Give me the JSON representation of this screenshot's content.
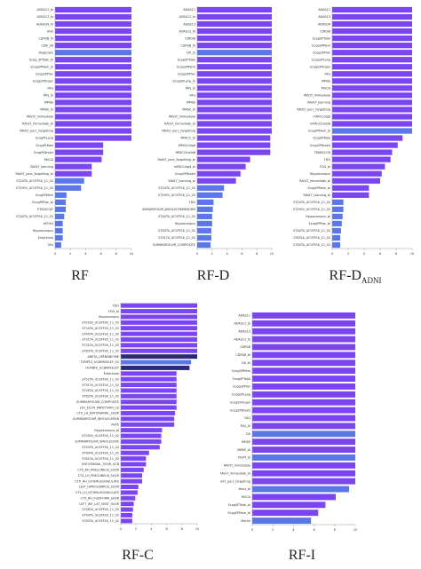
{
  "captions": [
    "RF",
    "RF-D",
    "RF-D",
    "RF-C",
    "RF-I"
  ],
  "caption_subscripts": [
    "",
    "",
    "ADNI",
    "",
    ""
  ],
  "colors": {
    "purple": "#7b45f2",
    "blue": "#5b76e6",
    "dark": "#2b2a7a",
    "axis": "#999999"
  },
  "chart_data": [
    {
      "type": "bar",
      "orientation": "horizontal",
      "xlim": [
        0,
        10
      ],
      "xticks": [
        0,
        2,
        4,
        6,
        8,
        10
      ],
      "categories": [
        "ADAS11_bl",
        "ADAS13_bl",
        "ADASQ4_bl",
        "AGE",
        "CDRSB_bl",
        "CDR_SB",
        "Diagnosis",
        "Ecog_SPTotal_bl",
        "EcogSPMem_bl",
        "EcogSPPlan",
        "EcogSPOrgan",
        "FAQ",
        "FAQ_bl",
        "MMSE",
        "MMSE_bl",
        "RAVLT_immediate",
        "RAVLT_immediate_bl",
        "RAVLT_perc_forgetting",
        "EcogPtLang",
        "EcogPtTotal",
        "EcogPtDivatt",
        "MOCA",
        "RAVLT_learning",
        "RAVLT_perc_forgetting_bl",
        "ST24TA_UCSFFSX_11_02",
        "ST29SV_UCSFFSX_11_02",
        "EcogPtMem",
        "EcogPtPlan_bl",
        "PTEDUCAT",
        "ST40TA_UCSFFSX_11_02",
        "APOE4",
        "Hippocampus",
        "Entorhinal",
        "TAU"
      ],
      "values": [
        10,
        10,
        10,
        10,
        10,
        10,
        10,
        10,
        10,
        10,
        10,
        10,
        10,
        10,
        10,
        10,
        10,
        10,
        10,
        6.3,
        6.3,
        6.1,
        4.8,
        4.8,
        3.8,
        3.4,
        1.5,
        1.4,
        1.4,
        1.2,
        1.0,
        1.0,
        1.0,
        0.8
      ],
      "colors": [
        "#7b45f2",
        "#7b45f2",
        "#7b45f2",
        "#7b45f2",
        "#7b45f2",
        "#7b45f2",
        "#5b76e6",
        "#7b45f2",
        "#7b45f2",
        "#7b45f2",
        "#7b45f2",
        "#7b45f2",
        "#7b45f2",
        "#7b45f2",
        "#7b45f2",
        "#7b45f2",
        "#7b45f2",
        "#7b45f2",
        "#7b45f2",
        "#7b45f2",
        "#7b45f2",
        "#7b45f2",
        "#7b45f2",
        "#7b45f2",
        "#5b76e6",
        "#5b76e6",
        "#5b76e6",
        "#5b76e6",
        "#5b76e6",
        "#5b76e6",
        "#5b76e6",
        "#5b76e6",
        "#5b76e6",
        "#5b76e6"
      ]
    },
    {
      "type": "bar",
      "orientation": "horizontal",
      "xlim": [
        0,
        10
      ],
      "xticks": [
        0,
        2,
        4,
        6,
        8,
        10
      ],
      "categories": [
        "ADAS11",
        "ADAS11_bl",
        "ADAS13",
        "ADAS13_bl",
        "CDRSB",
        "CDRSB_bl",
        "DX_bl",
        "EcogSPTotal",
        "EcogSPMem",
        "EcogSPPlan",
        "EcogSPLang_bl",
        "FAQ_bl",
        "FAQ",
        "MMSE",
        "MMSE_bl",
        "RAVLT_immediate",
        "RAVLT_immediate_bl",
        "RAVLT_perc_forgetting",
        "MPACC_bl",
        "MPACCdigit",
        "MPACCtrailsB",
        "RAVLT_perc_forgetting_bl",
        "mPACCdigit_bl",
        "EcogSPDivatt",
        "RAVLT_learning_bl",
        "ST24TA_UCSFFSX_11_02",
        "ST29SV_UCSFFSX_11_02",
        "FDG",
        "SUMMARYSUVR_WHOLECEREBNORM",
        "ST40TA_UCSFFSX_11_02",
        "Hippocampus",
        "ST83TA_UCSFFSX_11_02",
        "ST91TA_UCSFFSX_11_02",
        "SUMMARYSUVR_COMPOSITE"
      ],
      "values": [
        10,
        10,
        10,
        10,
        10,
        10,
        10,
        10,
        10,
        10,
        10,
        10,
        10,
        10,
        10,
        10,
        10,
        10,
        9.8,
        9.8,
        9.8,
        7.1,
        6.5,
        5.8,
        5.2,
        3.6,
        3.4,
        2.2,
        2.1,
        2.0,
        2.0,
        1.9,
        1.9,
        1.8
      ],
      "colors": [
        "#7b45f2",
        "#7b45f2",
        "#7b45f2",
        "#7b45f2",
        "#7b45f2",
        "#7b45f2",
        "#5b76e6",
        "#7b45f2",
        "#7b45f2",
        "#7b45f2",
        "#7b45f2",
        "#7b45f2",
        "#7b45f2",
        "#7b45f2",
        "#7b45f2",
        "#7b45f2",
        "#7b45f2",
        "#7b45f2",
        "#7b45f2",
        "#7b45f2",
        "#7b45f2",
        "#7b45f2",
        "#7b45f2",
        "#7b45f2",
        "#7b45f2",
        "#5b76e6",
        "#5b76e6",
        "#5b76e6",
        "#5b76e6",
        "#5b76e6",
        "#5b76e6",
        "#5b76e6",
        "#5b76e6",
        "#5b76e6"
      ]
    },
    {
      "type": "bar",
      "orientation": "horizontal",
      "xlim": [
        0,
        10
      ],
      "xticks": [
        0,
        2,
        4,
        6,
        8,
        10
      ],
      "categories": [
        "ADAS11",
        "ADAS13",
        "ADASQ4",
        "CDRSB",
        "EcogSPTotal",
        "EcogSPMem",
        "EcogSPPlan",
        "EcogSPLang",
        "EcogSPOrgan",
        "FAQ",
        "MMSE",
        "MOCA",
        "RAVLT_immediate",
        "RAVLT_learning",
        "RAVLT_perc_forgetting",
        "mPACCdigit",
        "mPACCtrailsB",
        "EcogPtMem_bl",
        "EcogPtTotal",
        "EcogSPDivatt",
        "TRABSCOR",
        "FDG",
        "FDG_bl",
        "Hippocampus",
        "RAVLT_immediate_bl",
        "EcogSPMem_bl",
        "RAVLT_learning_bl",
        "ST24TA_UCSFFSX_11_02",
        "ST29SV_UCSFFSX_11_02",
        "Hippocampus_bl",
        "EcogSPPlan_bl",
        "ST40TA_UCSFFSX_11_02",
        "STATSA_UCSFFSX_11_02",
        "ST83TA_UCSFFSX_11_02"
      ],
      "values": [
        10,
        10,
        10,
        10,
        10,
        10,
        10,
        10,
        10,
        10,
        10,
        10,
        10,
        10,
        10,
        10,
        10,
        10,
        8.8,
        8.2,
        7.5,
        7.3,
        6.6,
        6.2,
        6.0,
        4.6,
        4.6,
        1.4,
        1.4,
        1.3,
        1.2,
        1.1,
        1.0,
        1.0
      ],
      "colors": [
        "#7b45f2",
        "#7b45f2",
        "#7b45f2",
        "#7b45f2",
        "#7b45f2",
        "#7b45f2",
        "#7b45f2",
        "#7b45f2",
        "#7b45f2",
        "#7b45f2",
        "#7b45f2",
        "#7b45f2",
        "#7b45f2",
        "#7b45f2",
        "#7b45f2",
        "#7b45f2",
        "#7b45f2",
        "#5b76e6",
        "#7b45f2",
        "#7b45f2",
        "#7b45f2",
        "#7b45f2",
        "#7b45f2",
        "#7b45f2",
        "#7b45f2",
        "#7b45f2",
        "#7b45f2",
        "#5b76e6",
        "#5b76e6",
        "#5b76e6",
        "#5b76e6",
        "#5b76e6",
        "#5b76e6",
        "#5b76e6"
      ]
    },
    {
      "type": "bar",
      "orientation": "horizontal",
      "xlim": [
        0,
        10
      ],
      "xticks": [
        0,
        2,
        4,
        6,
        8,
        10
      ],
      "categories": [
        "FDG",
        "FDG_bl",
        "Hippocampus",
        "ST29SV_UCSFFSX_11_02",
        "ST24TA_UCSFFSX_11_02",
        "ST40TA_UCSFFSX_11_02",
        "ST31TA_UCSFFSX_11_02",
        "ST32TA_UCSFFSX_11_02",
        "ST83TA_UCSFFSX_11_02",
        "ABETA_UPENNBIOMK",
        "TEMPTZ_UCBERKELEY_02",
        "HOXBFE_UCBERKELEY",
        "Entorhinal",
        "ST52TA_UCSFFSX_11_02",
        "ST91TA_UCSFFSX_11_02",
        "ST26TA_UCSFFSX_11_02",
        "ST62TA_UCSFFSX_11_02",
        "SUMMARYSUVR_COMPOSITE",
        "HCI_ECO4_RAPETVHRI_CE",
        "CTX_LH_ENTORHINAL_SUVR",
        "SUMMARYSUVR_WHOLECEREB",
        "AV45",
        "Hippocampus_bl",
        "ST29SV_UCSFFSX_11_02",
        "SUMMARYSUVR_WHOLECERE",
        "ST44TA_UCSFFSX_11_02",
        "ST60TA_UCSFFSX_11_02",
        "ST81TA_UCSFFSX_11_02",
        "ENTORHINAL_SUVR_UCB",
        "CTX_RH_PRECUNEUS_SUVR",
        "CTX_LH_PRECUNEUS_SUVR",
        "CTX_RH_ISTHMUSCINGULATE",
        "LEFT_HIPPOCAMPUS_SUVR",
        "CTX_LH_ISTHMUSCINGULATE",
        "CTX_RH_FUSIFORM_SUVR",
        "LEFT_INF_LAT_VENT_SUVR",
        "ST58TA_UCSFFSX_11_02",
        "ST59TA_UCSFFSX_11_02",
        "ST40TA_UCSFFSX_11_02"
      ],
      "values": [
        10,
        10,
        10,
        10,
        10,
        10,
        10,
        10,
        10,
        10,
        9.2,
        9.0,
        7.3,
        7.3,
        7.3,
        7.3,
        7.3,
        7.3,
        7.3,
        7.1,
        7.0,
        7.0,
        5.4,
        5.3,
        5.3,
        5.1,
        3.7,
        3.3,
        3.3,
        3.0,
        2.8,
        2.8,
        2.3,
        2.2,
        1.9,
        1.7,
        1.6,
        1.5,
        1.5
      ],
      "colors": [
        "#7b45f2",
        "#7b45f2",
        "#7b45f2",
        "#7b45f2",
        "#7b45f2",
        "#7b45f2",
        "#7b45f2",
        "#7b45f2",
        "#7b45f2",
        "#2b2a7a",
        "#5b76e6",
        "#2b2a7a",
        "#7b45f2",
        "#7b45f2",
        "#7b45f2",
        "#7b45f2",
        "#7b45f2",
        "#7b45f2",
        "#7b45f2",
        "#7b45f2",
        "#7b45f2",
        "#7b45f2",
        "#7b45f2",
        "#7b45f2",
        "#7b45f2",
        "#7b45f2",
        "#7b45f2",
        "#7b45f2",
        "#7b45f2",
        "#7b45f2",
        "#7b45f2",
        "#7b45f2",
        "#7b45f2",
        "#7b45f2",
        "#7b45f2",
        "#7b45f2",
        "#7b45f2",
        "#7b45f2",
        "#7b45f2"
      ]
    },
    {
      "type": "bar",
      "orientation": "horizontal",
      "xlim": [
        0,
        10
      ],
      "xticks": [
        0,
        2,
        4,
        6,
        8,
        10
      ],
      "categories": [
        "ADAS11",
        "ADAS11_bl",
        "ADAS13",
        "ADAS13_bl",
        "CDRSB",
        "CDRSB_bl",
        "DX_bl",
        "EcogSPMem",
        "EcogSPTotal",
        "EcogSPPlan",
        "EcogSPLang",
        "EcogSPOrgan",
        "EcogSPDivatt",
        "FAQ",
        "FAQ_bl",
        "DX",
        "MMSE",
        "MMSE_bl",
        "PtsAT_bl",
        "RAVLT_immediate",
        "RAVLT_immediate_bl",
        "RAVLT_perc_forgetting",
        "Years_bl",
        "MOCA",
        "EcogSPTotal_bl",
        "EcogSPMem_bl",
        "Month"
      ],
      "values": [
        10,
        10,
        10,
        10,
        10,
        10,
        10,
        10,
        10,
        10,
        10,
        10,
        10,
        10,
        10,
        10,
        10,
        10,
        10,
        10,
        10,
        10,
        9.4,
        8.1,
        7.1,
        6.4,
        5.7
      ],
      "colors": [
        "#7b45f2",
        "#7b45f2",
        "#7b45f2",
        "#7b45f2",
        "#7b45f2",
        "#7b45f2",
        "#7b45f2",
        "#7b45f2",
        "#7b45f2",
        "#7b45f2",
        "#7b45f2",
        "#7b45f2",
        "#7b45f2",
        "#7b45f2",
        "#7b45f2",
        "#5b76e6",
        "#7b45f2",
        "#7b45f2",
        "#5b76e6",
        "#7b45f2",
        "#7b45f2",
        "#7b45f2",
        "#5b76e6",
        "#7b45f2",
        "#7b45f2",
        "#7b45f2",
        "#5b76e6"
      ]
    }
  ]
}
